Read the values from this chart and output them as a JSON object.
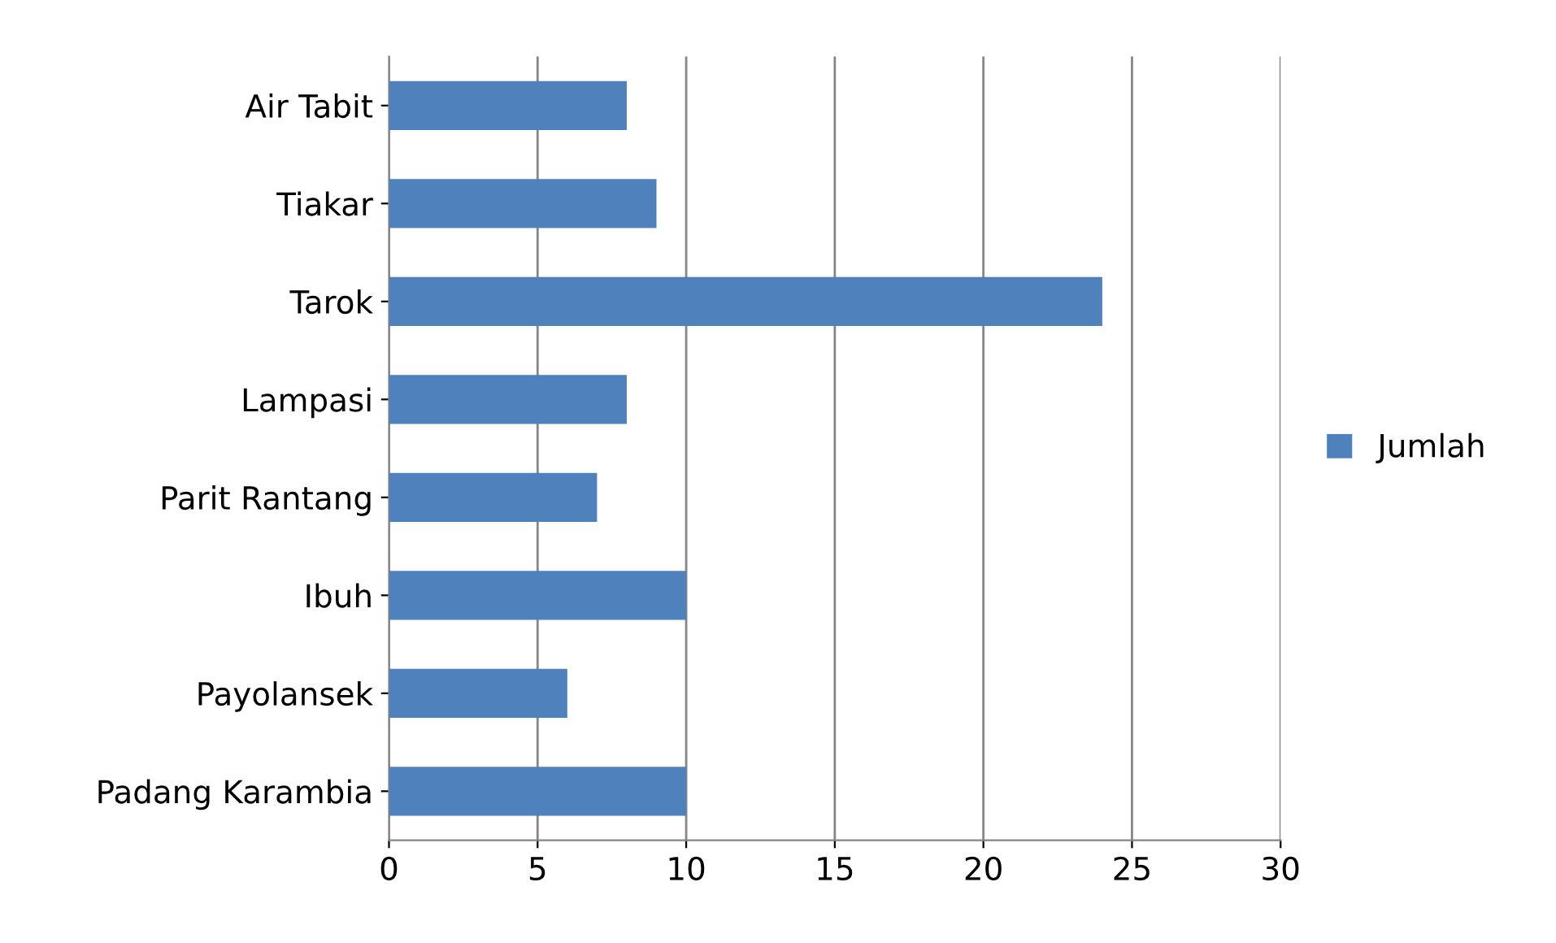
{
  "chart_data": {
    "type": "bar",
    "orientation": "horizontal",
    "categories": [
      "Air Tabit",
      "Tiakar",
      "Tarok",
      "Lampasi",
      "Parit Rantang",
      "Ibuh",
      "Payolansek",
      "Padang Karambia"
    ],
    "series": [
      {
        "name": "Jumlah",
        "color": "#4f81bd",
        "values": [
          8,
          9,
          24,
          8,
          7,
          10,
          6,
          10
        ]
      }
    ],
    "xlim": [
      0,
      30
    ],
    "xticks": [
      0,
      5,
      10,
      15,
      20,
      25,
      30
    ],
    "grid": "x",
    "legend": "right"
  }
}
